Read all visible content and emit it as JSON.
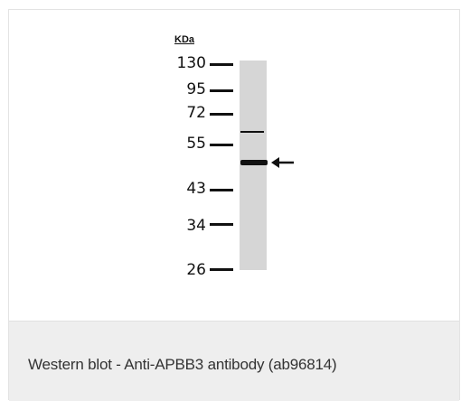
{
  "blot": {
    "unit_label": "KDa",
    "markers": [
      {
        "label": "130"
      },
      {
        "label": "95"
      },
      {
        "label": "72"
      },
      {
        "label": "55"
      },
      {
        "label": "43"
      },
      {
        "label": "34"
      },
      {
        "label": "26"
      }
    ]
  },
  "caption": "Western blot - Anti-APBB3 antibody (ab96814)"
}
